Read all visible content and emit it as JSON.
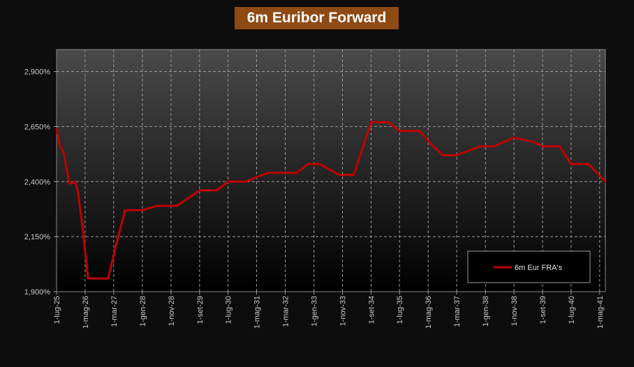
{
  "chart_data": {
    "type": "line",
    "title": "6m Euribor Forward",
    "xlabel": "",
    "ylabel": "",
    "ylim": [
      1.9,
      3.0
    ],
    "y_ticks": [
      "1,900%",
      "2,150%",
      "2,400%",
      "2,650%",
      "2,900%"
    ],
    "x_ticks": [
      "1-lug-25",
      "1-mag-26",
      "1-mar-27",
      "1-gen-28",
      "1-nov-28",
      "1-set-29",
      "1-lug-30",
      "1-mag-31",
      "1-mar-32",
      "1-gen-33",
      "1-nov-33",
      "1-set-34",
      "1-lug-35",
      "1-mag-36",
      "1-mar-37",
      "1-gen-38",
      "1-nov-38",
      "1-set-39",
      "1-lug-40",
      "1-mag-41"
    ],
    "grid": true,
    "legend_position": "bottom-right",
    "colors": {
      "line": "#c00000",
      "title_bg": "#8f4a14",
      "background": "#0d0d0d"
    },
    "series": [
      {
        "name": "6m Eur FRA's",
        "points": [
          [
            "2025-07-01",
            2.64
          ],
          [
            "2025-08-01",
            2.57
          ],
          [
            "2025-09-15",
            2.53
          ],
          [
            "2025-11-15",
            2.39
          ],
          [
            "2026-01-15",
            2.4
          ],
          [
            "2026-02-15",
            2.35
          ],
          [
            "2026-04-01",
            2.2
          ],
          [
            "2026-06-01",
            1.96
          ],
          [
            "2026-08-01",
            1.96
          ],
          [
            "2027-01-01",
            1.96
          ],
          [
            "2027-04-01",
            2.12
          ],
          [
            "2027-07-01",
            2.27
          ],
          [
            "2027-10-01",
            2.27
          ],
          [
            "2028-01-01",
            2.27
          ],
          [
            "2028-06-01",
            2.29
          ],
          [
            "2029-01-01",
            2.29
          ],
          [
            "2029-09-01",
            2.36
          ],
          [
            "2030-03-01",
            2.36
          ],
          [
            "2030-07-01",
            2.4
          ],
          [
            "2031-01-01",
            2.4
          ],
          [
            "2031-05-01",
            2.42
          ],
          [
            "2031-09-01",
            2.44
          ],
          [
            "2032-07-01",
            2.44
          ],
          [
            "2032-11-01",
            2.48
          ],
          [
            "2033-03-01",
            2.48
          ],
          [
            "2033-10-01",
            2.43
          ],
          [
            "2034-03-01",
            2.43
          ],
          [
            "2034-09-01",
            2.67
          ],
          [
            "2035-03-01",
            2.67
          ],
          [
            "2035-07-01",
            2.63
          ],
          [
            "2036-02-01",
            2.63
          ],
          [
            "2036-06-01",
            2.57
          ],
          [
            "2036-10-01",
            2.52
          ],
          [
            "2037-03-01",
            2.52
          ],
          [
            "2037-11-01",
            2.56
          ],
          [
            "2038-04-01",
            2.56
          ],
          [
            "2038-11-01",
            2.6
          ],
          [
            "2039-06-01",
            2.58
          ],
          [
            "2039-09-01",
            2.56
          ],
          [
            "2040-03-01",
            2.56
          ],
          [
            "2040-07-01",
            2.48
          ],
          [
            "2041-01-01",
            2.48
          ],
          [
            "2041-07-01",
            2.4
          ]
        ]
      }
    ]
  }
}
